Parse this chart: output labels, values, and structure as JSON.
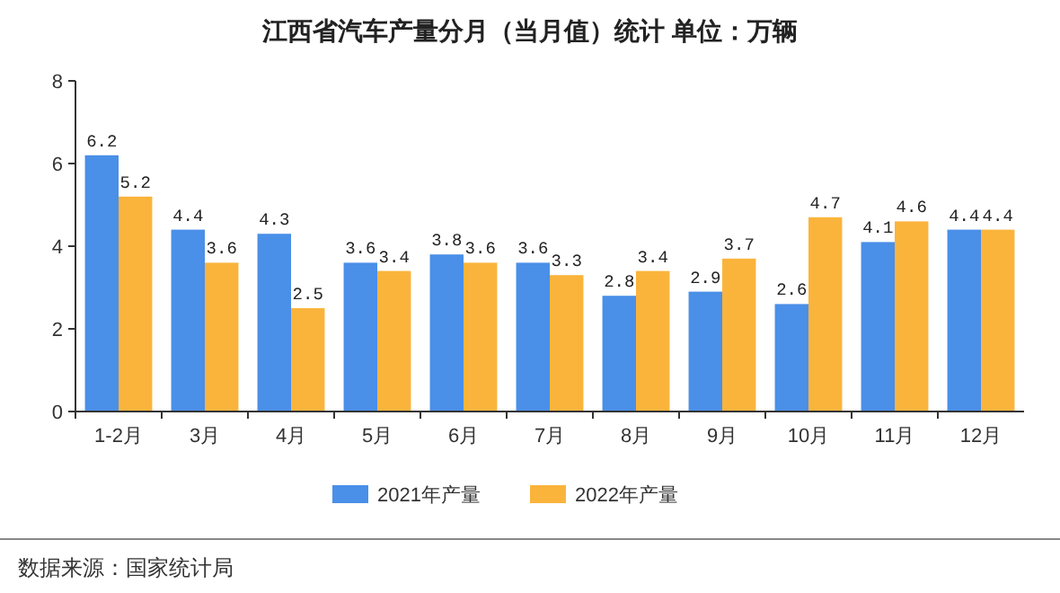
{
  "chart_data": {
    "type": "bar",
    "title": "江西省汽车产量分月（当月值）统计  单位：万辆",
    "categories": [
      "1-2月",
      "3月",
      "4月",
      "5月",
      "6月",
      "7月",
      "8月",
      "9月",
      "10月",
      "11月",
      "12月"
    ],
    "series": [
      {
        "name": "2021年产量",
        "color": "#4a8fe8",
        "values": [
          6.2,
          4.4,
          4.3,
          3.6,
          3.8,
          3.6,
          2.8,
          2.9,
          2.6,
          4.1,
          4.4
        ]
      },
      {
        "name": "2022年产量",
        "color": "#fab43c",
        "values": [
          5.2,
          3.6,
          2.5,
          3.4,
          3.6,
          3.3,
          3.4,
          3.7,
          4.7,
          4.6,
          4.4
        ]
      }
    ],
    "ylim": [
      0,
      8
    ],
    "yticks": [
      0,
      2,
      4,
      6,
      8
    ],
    "data_labels": true,
    "legend": "bottom",
    "grid": false,
    "annotations": [
      "数据来源：国家统计局"
    ]
  }
}
